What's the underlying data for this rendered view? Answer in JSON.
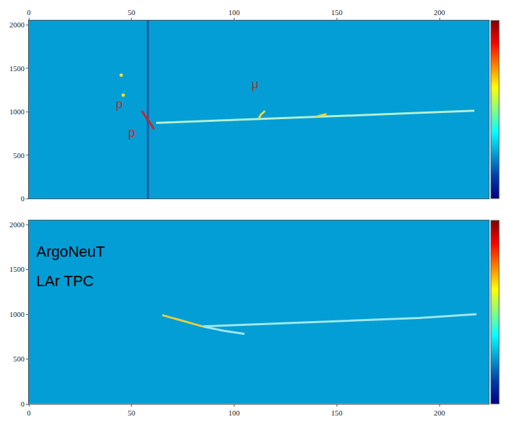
{
  "chart_data": [
    {
      "type": "heatmap",
      "xlim": [
        0,
        224
      ],
      "ylim": [
        0,
        2048
      ],
      "xticks": [
        0,
        50,
        100,
        150,
        200
      ],
      "yticks": [
        0,
        500,
        1000,
        1500,
        2000
      ],
      "cells": {
        "x": [
          0,
          224
        ],
        "y": [
          0,
          2048
        ],
        "z": [
          [
            0.25
          ]
        ]
      },
      "zlim": [
        0,
        1
      ],
      "zticks": [],
      "series": [
        {
          "color": "#1e5aa0",
          "x": [
            58,
            58
          ],
          "values": [
            0,
            2048
          ]
        },
        {
          "color": "#b4f0d2",
          "x": [
            62,
            90,
            110,
            130,
            150,
            180,
            217
          ],
          "values": [
            872,
            895,
            915,
            932,
            950,
            978,
            1012
          ]
        },
        {
          "color": "#e8d840",
          "x": [
            112,
            113,
            115
          ],
          "values": [
            925,
            965,
            1010
          ]
        },
        {
          "color": "#e8d840",
          "x": [
            140,
            142,
            145
          ],
          "values": [
            942,
            958,
            972
          ]
        },
        {
          "color": "#d42020",
          "x": [
            55,
            57,
            59,
            61
          ],
          "values": [
            1010,
            940,
            870,
            800
          ]
        },
        {
          "color": "#e8e040",
          "x": [
            45,
            46
          ],
          "values": [
            1420,
            1190
          ],
          "line_style": "none",
          "marker": "circle"
        }
      ],
      "annotations": [
        {
          "text": "p",
          "x": 44,
          "y": 1090
        },
        {
          "text": "p",
          "x": 50,
          "y": 760
        },
        {
          "text": "μ",
          "x": 110,
          "y": 1320
        }
      ]
    },
    {
      "type": "heatmap",
      "xlim": [
        0,
        224
      ],
      "ylim": [
        0,
        2048
      ],
      "xticks": [
        0,
        50,
        100,
        150,
        200
      ],
      "yticks": [
        0,
        500,
        1000,
        1500,
        2000
      ],
      "cells": {
        "x": [
          0,
          224
        ],
        "y": [
          0,
          2048
        ],
        "z": [
          [
            0.25
          ]
        ]
      },
      "zlim": [
        0,
        1
      ],
      "zticks": [],
      "series": [
        {
          "color": "#e8d040",
          "x": [
            65,
            75,
            85
          ],
          "values": [
            990,
            925,
            862
          ]
        },
        {
          "color": "#a0e8f0",
          "x": [
            85,
            95,
            105
          ],
          "values": [
            862,
            815,
            780
          ]
        },
        {
          "color": "#a0e8f0",
          "x": [
            85,
            120,
            160,
            190,
            218
          ],
          "values": [
            865,
            895,
            930,
            958,
            1000
          ]
        }
      ],
      "annotations": [
        {
          "text": "ArgoNeuT",
          "x": 3,
          "y": 1700
        },
        {
          "text": "LAr TPC",
          "x": 3,
          "y": 1370
        }
      ]
    }
  ]
}
